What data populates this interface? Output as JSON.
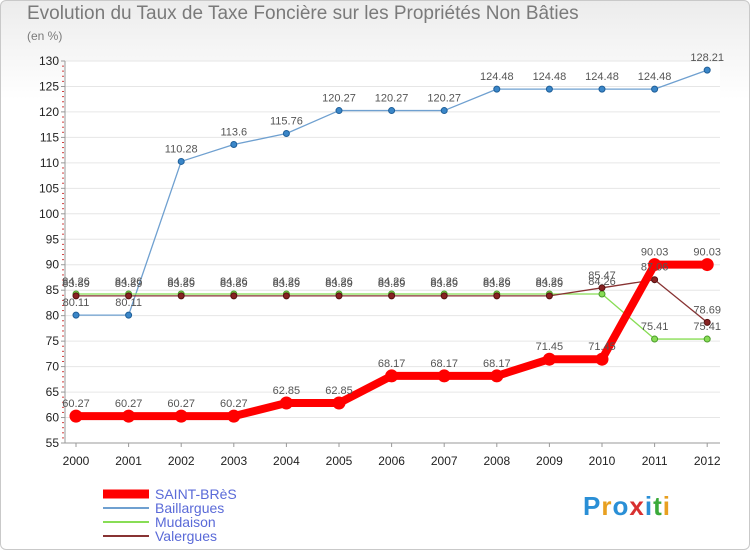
{
  "chart_data": {
    "type": "line",
    "title": "Evolution du Taux de Taxe Foncière sur les Propriétés Non Bâties",
    "ylabel": "(en %)",
    "xlabel": "",
    "ylim": [
      55,
      130
    ],
    "yticks": [
      55,
      60,
      65,
      70,
      75,
      80,
      85,
      90,
      95,
      100,
      105,
      110,
      115,
      120,
      125,
      130
    ],
    "categories": [
      "2000",
      "2001",
      "2002",
      "2003",
      "2004",
      "2005",
      "2006",
      "2007",
      "2008",
      "2009",
      "2010",
      "2011",
      "2012"
    ],
    "grid": "horizontal",
    "legend_position": "bottom-left",
    "series": [
      {
        "name": "SAINT-BRèS",
        "color": "#ff0000",
        "values": [
          60.27,
          60.27,
          60.27,
          60.27,
          62.85,
          62.85,
          68.17,
          68.17,
          68.17,
          71.45,
          71.45,
          90.03,
          90.03
        ],
        "labels": [
          "60.27",
          "60.27",
          "60.27",
          "60.27",
          "62.85",
          "62.85",
          "68.17",
          "68.17",
          "68.17",
          "71.45",
          "71.45",
          "90.03",
          "90.03"
        ]
      },
      {
        "name": "Baillargues",
        "color": "#6fa0d0",
        "values": [
          80.11,
          80.11,
          110.28,
          113.6,
          115.76,
          120.27,
          120.27,
          120.27,
          124.48,
          124.48,
          124.48,
          124.48,
          128.21
        ],
        "labels": [
          "80.11",
          "80.11",
          "110.28",
          "113.6",
          "115.76",
          "120.27",
          "120.27",
          "120.27",
          "124.48",
          "124.48",
          "124.48",
          "124.48",
          "128.21"
        ]
      },
      {
        "name": "Mudaison",
        "color": "#88dd55",
        "values": [
          84.26,
          84.26,
          84.26,
          84.26,
          84.26,
          84.26,
          84.26,
          84.26,
          84.26,
          84.26,
          84.26,
          75.41,
          75.41
        ],
        "labels": [
          "84.26",
          "84.26",
          "84.26",
          "84.26",
          "84.26",
          "84.26",
          "84.26",
          "84.26",
          "84.26",
          "84.26",
          "84.26",
          "75.41",
          "75.41"
        ]
      },
      {
        "name": "Valergues",
        "color": "#883333",
        "values": [
          83.89,
          83.89,
          83.89,
          83.89,
          83.89,
          83.89,
          83.89,
          83.89,
          83.89,
          83.89,
          85.47,
          87.06,
          78.69
        ],
        "labels": [
          "83.89",
          "83.89",
          "83.89",
          "83.89",
          "83.89",
          "83.89",
          "83.89",
          "83.89",
          "83.89",
          "83.89",
          "85.47",
          "87.06",
          "78.69"
        ]
      }
    ]
  },
  "logo": {
    "text": "Proxiti",
    "colors": [
      "#2a8fd6",
      "#e8a020",
      "#2a8fd6",
      "#d83030",
      "#2a8fd6",
      "#3aaa3a",
      "#e8a020"
    ]
  }
}
